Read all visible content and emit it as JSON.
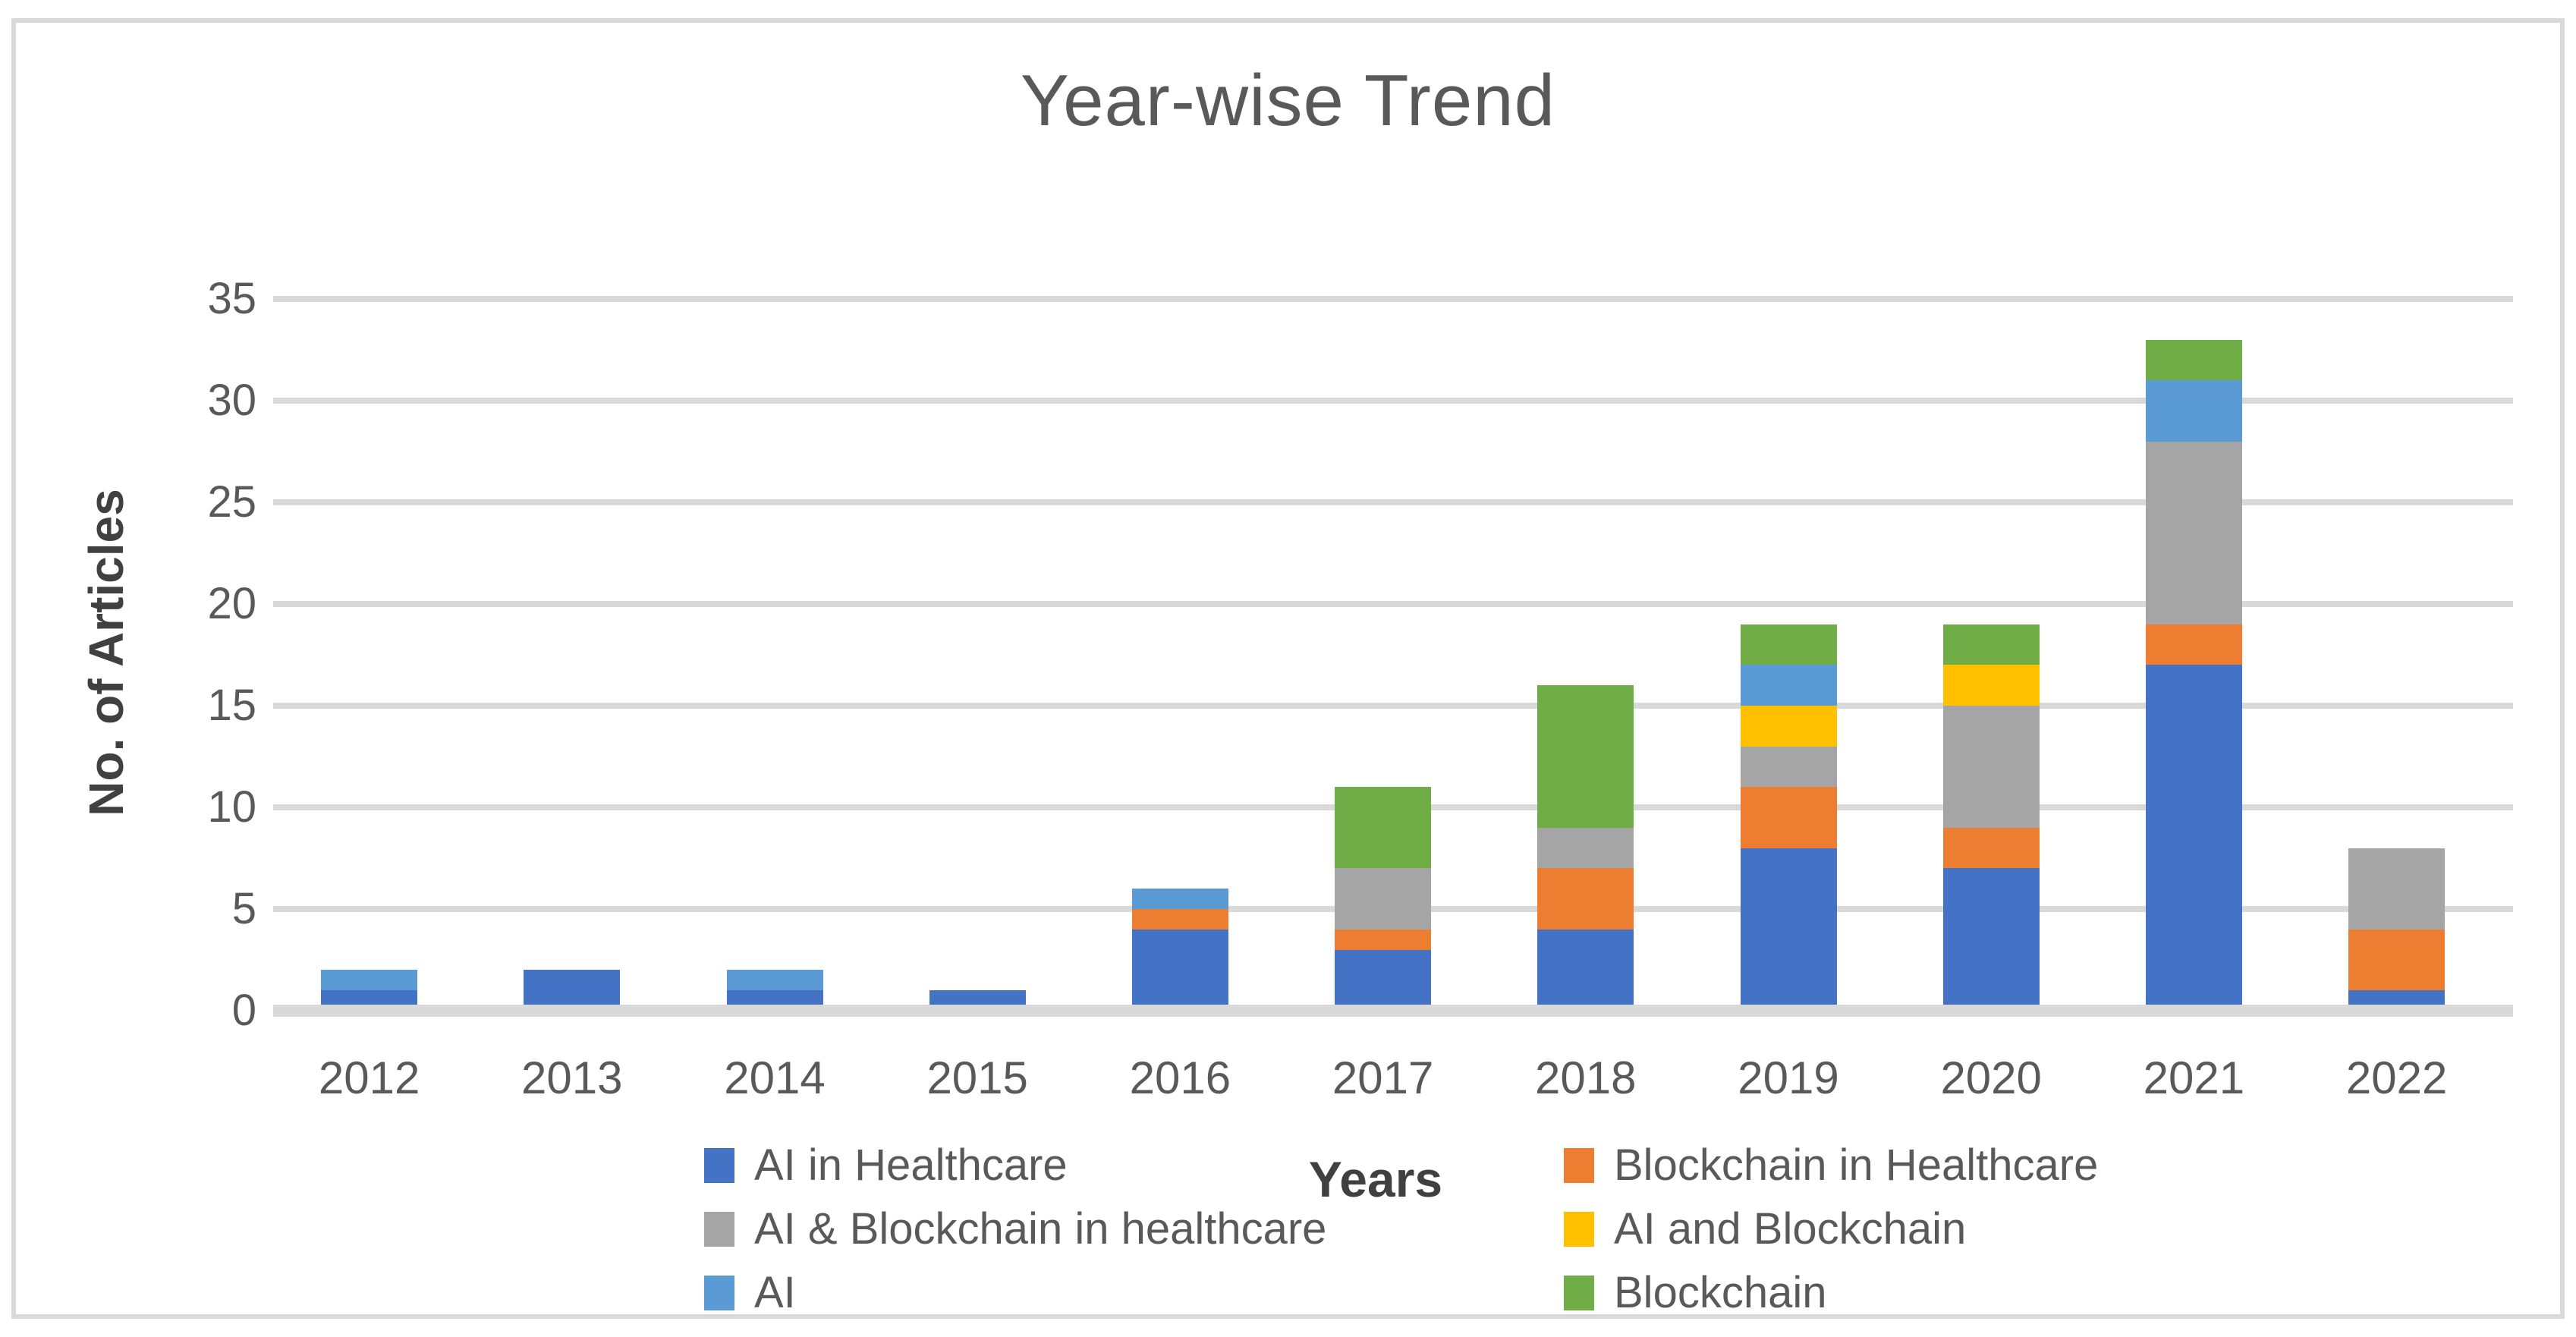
{
  "title": "Year-wise Trend",
  "y_axis": {
    "title": "No. of Articles",
    "ticks": [
      0,
      5,
      10,
      15,
      20,
      25,
      30,
      35
    ]
  },
  "x_axis": {
    "title": "Years"
  },
  "colors": {
    "ai_in_healthcare": "#4472C4",
    "blockchain_in_healthcare": "#ED7D31",
    "ai_and_blockchain_in_healthcare": "#A5A5A5",
    "ai_and_blockchain": "#FFC000",
    "ai": "#5B9BD5",
    "blockchain": "#70AD47",
    "gridline": "#D9D9D9",
    "title_text": "#595959",
    "axis_title_text": "#404040"
  },
  "legend": {
    "columns": [
      [
        0,
        2,
        4
      ],
      [
        1,
        3,
        5
      ]
    ]
  },
  "chart_data": {
    "type": "bar",
    "stacked": true,
    "title": "Year-wise Trend",
    "xlabel": "Years",
    "ylabel": "No. of Articles",
    "ylim": [
      0,
      35
    ],
    "grid": true,
    "legend_position": "bottom",
    "categories": [
      "2012",
      "2013",
      "2014",
      "2015",
      "2016",
      "2017",
      "2018",
      "2019",
      "2020",
      "2021",
      "2022"
    ],
    "series": [
      {
        "name": "AI in Healthcare",
        "color": "#4472C4",
        "values": [
          1,
          2,
          1,
          1,
          4,
          3,
          4,
          8,
          7,
          17,
          1
        ]
      },
      {
        "name": "Blockchain in Healthcare",
        "color": "#ED7D31",
        "values": [
          0,
          0,
          0,
          0,
          1,
          1,
          3,
          3,
          2,
          2,
          3
        ]
      },
      {
        "name": "AI & Blockchain in healthcare",
        "color": "#A5A5A5",
        "values": [
          0,
          0,
          0,
          0,
          0,
          3,
          2,
          2,
          6,
          9,
          4
        ]
      },
      {
        "name": "AI and Blockchain",
        "color": "#FFC000",
        "values": [
          0,
          0,
          0,
          0,
          0,
          0,
          0,
          2,
          2,
          0,
          0
        ]
      },
      {
        "name": "AI",
        "color": "#5B9BD5",
        "values": [
          1,
          0,
          1,
          0,
          1,
          0,
          0,
          2,
          0,
          3,
          0
        ]
      },
      {
        "name": "Blockchain",
        "color": "#70AD47",
        "values": [
          0,
          0,
          0,
          0,
          0,
          4,
          7,
          2,
          2,
          2,
          0
        ]
      }
    ],
    "totals": [
      2,
      2,
      2,
      1,
      6,
      11,
      16,
      19,
      19,
      33,
      8
    ]
  }
}
